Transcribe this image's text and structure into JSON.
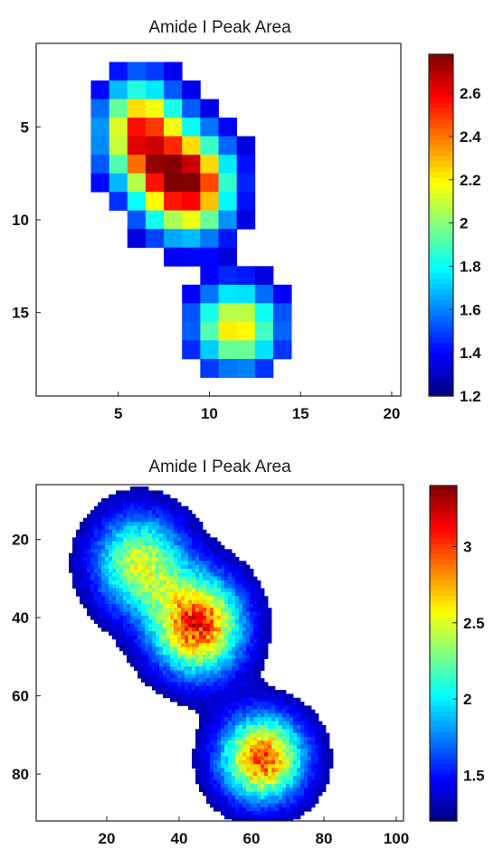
{
  "chart_data": [
    {
      "type": "heatmap",
      "title": "Amide I Peak Area",
      "xlabel": "",
      "ylabel": "",
      "xlim": [
        0.5,
        20.5
      ],
      "ylim": [
        0.5,
        19.5
      ],
      "y_reversed": true,
      "x_ticks": [
        5,
        10,
        15,
        20
      ],
      "y_ticks": [
        5,
        10,
        15
      ],
      "colorbar": {
        "min": 1.2,
        "max": 2.78,
        "ticks": [
          1.2,
          1.4,
          1.6,
          1.8,
          2,
          2.2,
          2.4,
          2.6
        ],
        "colormap": "jet"
      },
      "grid": false,
      "blobs": [
        {
          "x": 6.2,
          "y": 5.3,
          "peak": 1.25,
          "sigma_x": 1.5,
          "sigma_y": 2.0
        },
        {
          "x": 8.8,
          "y": 8.1,
          "peak": 1.55,
          "sigma_x": 1.7,
          "sigma_y": 1.9
        },
        {
          "x": 11.5,
          "y": 15.8,
          "peak": 1.05,
          "sigma_x": 1.7,
          "sigma_y": 1.6
        }
      ],
      "base_value": 1.2,
      "support_threshold": 1.34
    },
    {
      "type": "heatmap",
      "title": "Amide I Peak Area",
      "xlabel": "",
      "ylabel": "",
      "xlim": [
        0.5,
        102
      ],
      "ylim": [
        6,
        92
      ],
      "y_reversed": true,
      "x_ticks": [
        20,
        40,
        60,
        80,
        100
      ],
      "y_ticks": [
        20,
        40,
        60,
        80
      ],
      "colorbar": {
        "min": 1.2,
        "max": 3.4,
        "ticks": [
          1.5,
          2,
          2.5,
          3
        ],
        "colormap": "jet"
      },
      "grid": false,
      "blobs": [
        {
          "x": 29,
          "y": 26,
          "peak": 1.25,
          "sigma_x": 8.5,
          "sigma_y": 8.5
        },
        {
          "x": 45,
          "y": 42,
          "peak": 1.85,
          "sigma_x": 8.5,
          "sigma_y": 8.5
        },
        {
          "x": 63,
          "y": 76,
          "peak": 1.75,
          "sigma_x": 8.0,
          "sigma_y": 7.5
        }
      ],
      "base_value": 1.2,
      "support_threshold": 1.3
    }
  ]
}
